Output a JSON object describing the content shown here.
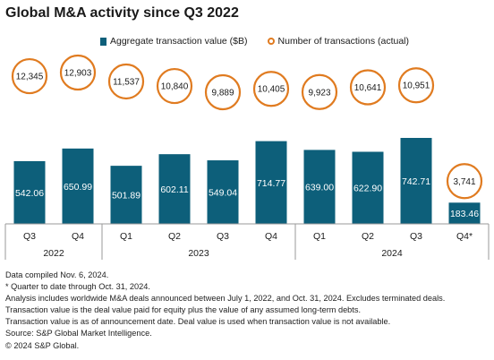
{
  "chart_data": {
    "type": "bar",
    "title": "Global M&A activity since Q3 2022",
    "legend": [
      "Aggregate transaction value ($B)",
      "Number of transactions (actual)"
    ],
    "categories": [
      "Q3",
      "Q4",
      "Q1",
      "Q2",
      "Q3",
      "Q4",
      "Q1",
      "Q2",
      "Q3",
      "Q4*"
    ],
    "years": [
      {
        "label": "2022",
        "from": 0,
        "to": 1
      },
      {
        "label": "2023",
        "from": 2,
        "to": 5
      },
      {
        "label": "2024",
        "from": 6,
        "to": 9
      }
    ],
    "series": [
      {
        "name": "Aggregate transaction value ($B)",
        "values": [
          542.06,
          650.99,
          501.89,
          602.11,
          549.04,
          714.77,
          639.0,
          622.9,
          742.71,
          183.46
        ],
        "labels": [
          "542.06",
          "650.99",
          "501.89",
          "602.11",
          "549.04",
          "714.77",
          "639.00",
          "622.90",
          "742.71",
          "183.46"
        ]
      },
      {
        "name": "Number of transactions (actual)",
        "values": [
          12345,
          12903,
          11537,
          10840,
          9889,
          10405,
          9923,
          10641,
          10951,
          3741
        ],
        "labels": [
          "12,345",
          "12,903",
          "11,537",
          "10,840",
          "9,889",
          "10,405",
          "9,923",
          "10,641",
          "10,951",
          "3,741"
        ]
      }
    ],
    "colors": {
      "bar": "#0d5f7a",
      "circle": "#e07b20"
    }
  },
  "notes": [
    "Data compiled Nov. 6, 2024.",
    "* Quarter to date through Oct. 31, 2024.",
    "Analysis includes worldwide M&A deals announced between July 1, 2022, and Oct. 31, 2024. Excludes terminated deals.",
    "Transaction value is the deal value paid for equity plus the value of any assumed long-term debts.",
    "Transaction value is as of announcement date. Deal value is used when transaction value is not available.",
    "Source: S&P Global Market Intelligence.",
    "© 2024 S&P Global."
  ]
}
